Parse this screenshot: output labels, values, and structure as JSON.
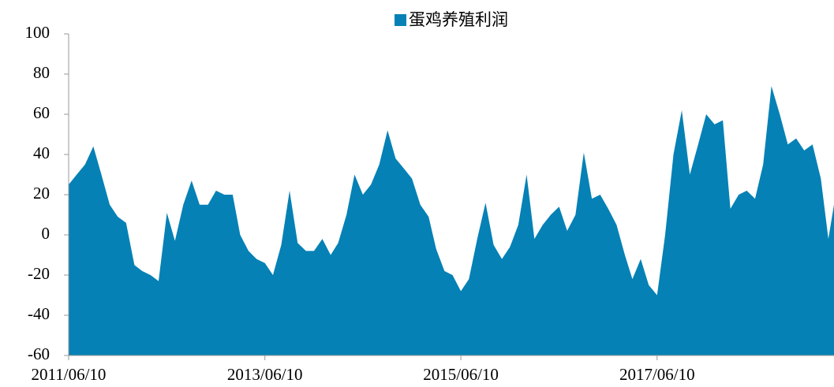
{
  "chart_data": {
    "type": "area",
    "legend": "top",
    "series": [
      {
        "name": "蛋鸡养殖利润",
        "color": "#0581b5",
        "values": [
          25,
          30,
          35,
          44,
          30,
          15,
          9,
          6,
          -15,
          -18,
          -20,
          -23,
          11,
          -3,
          15,
          27,
          15,
          15,
          22,
          20,
          20,
          0,
          -8,
          -12,
          -14,
          -20,
          -5,
          22,
          -4,
          -8,
          -8,
          -2,
          -10,
          -4,
          10,
          30,
          20,
          25,
          35,
          52,
          38,
          33,
          28,
          15,
          9,
          -7,
          -18,
          -20,
          -28,
          -22,
          -2,
          16,
          -5,
          -12,
          -6,
          5,
          30,
          -2,
          5,
          10,
          14,
          2,
          10,
          41,
          18,
          20,
          13,
          5,
          -10,
          -22,
          -12,
          -25,
          -30,
          0,
          40,
          62,
          30,
          45,
          60,
          55,
          57,
          13,
          20,
          22,
          18,
          35,
          74,
          60,
          45,
          48,
          42,
          45,
          28,
          -2,
          15
        ]
      }
    ],
    "x": [
      "2011/06/10",
      "2011/07/10",
      "2011/08/10",
      "2011/09/10",
      "2011/10/10",
      "2011/11/10",
      "2011/12/10",
      "2012/01/10",
      "2012/02/10",
      "2012/03/10",
      "2012/04/10",
      "2012/05/10",
      "2012/06/10",
      "2012/07/10",
      "2012/08/10",
      "2012/09/10",
      "2012/10/10",
      "2012/11/10",
      "2012/12/10",
      "2013/01/10",
      "2013/02/10",
      "2013/03/10",
      "2013/04/10",
      "2013/05/10",
      "2013/06/10",
      "2013/07/10",
      "2013/08/10",
      "2013/09/10",
      "2013/10/10",
      "2013/11/10",
      "2013/12/10",
      "2014/01/10",
      "2014/02/10",
      "2014/03/10",
      "2014/04/10",
      "2014/05/10",
      "2014/06/10",
      "2014/07/10",
      "2014/08/10",
      "2014/09/10",
      "2014/10/10",
      "2014/11/10",
      "2014/12/10",
      "2015/01/10",
      "2015/02/10",
      "2015/03/10",
      "2015/04/10",
      "2015/05/10",
      "2015/06/10",
      "2015/07/10",
      "2015/08/10",
      "2015/09/10",
      "2015/10/10",
      "2015/11/10",
      "2015/12/10",
      "2016/01/10",
      "2016/02/10",
      "2016/03/10",
      "2016/04/10",
      "2016/05/10",
      "2016/06/10",
      "2016/07/10",
      "2016/08/10",
      "2016/09/10",
      "2016/10/10",
      "2016/11/10",
      "2016/12/10",
      "2017/01/10",
      "2017/02/10",
      "2017/03/10",
      "2017/04/10",
      "2017/05/10",
      "2017/06/10",
      "2017/07/10",
      "2017/08/10",
      "2017/09/10",
      "2017/10/10",
      "2017/11/10",
      "2017/12/10",
      "2018/01/10",
      "2018/02/10",
      "2018/03/10",
      "2018/04/10",
      "2018/05/10",
      "2018/06/10",
      "2018/07/10",
      "2018/08/10",
      "2018/09/10",
      "2018/10/10",
      "2018/11/10",
      "2018/12/10",
      "2019/01/10",
      "2019/02/10",
      "2019/03/10",
      "2019/03/31"
    ],
    "xlim": [
      "2011/06/10",
      "2019/03/31"
    ],
    "xticks": [
      "2011/06/10",
      "2013/06/10",
      "2015/06/10",
      "2017/06/10"
    ],
    "ylim": [
      -60,
      100
    ],
    "yticks": [
      -60,
      -40,
      -20,
      0,
      20,
      40,
      60,
      80,
      100
    ]
  }
}
